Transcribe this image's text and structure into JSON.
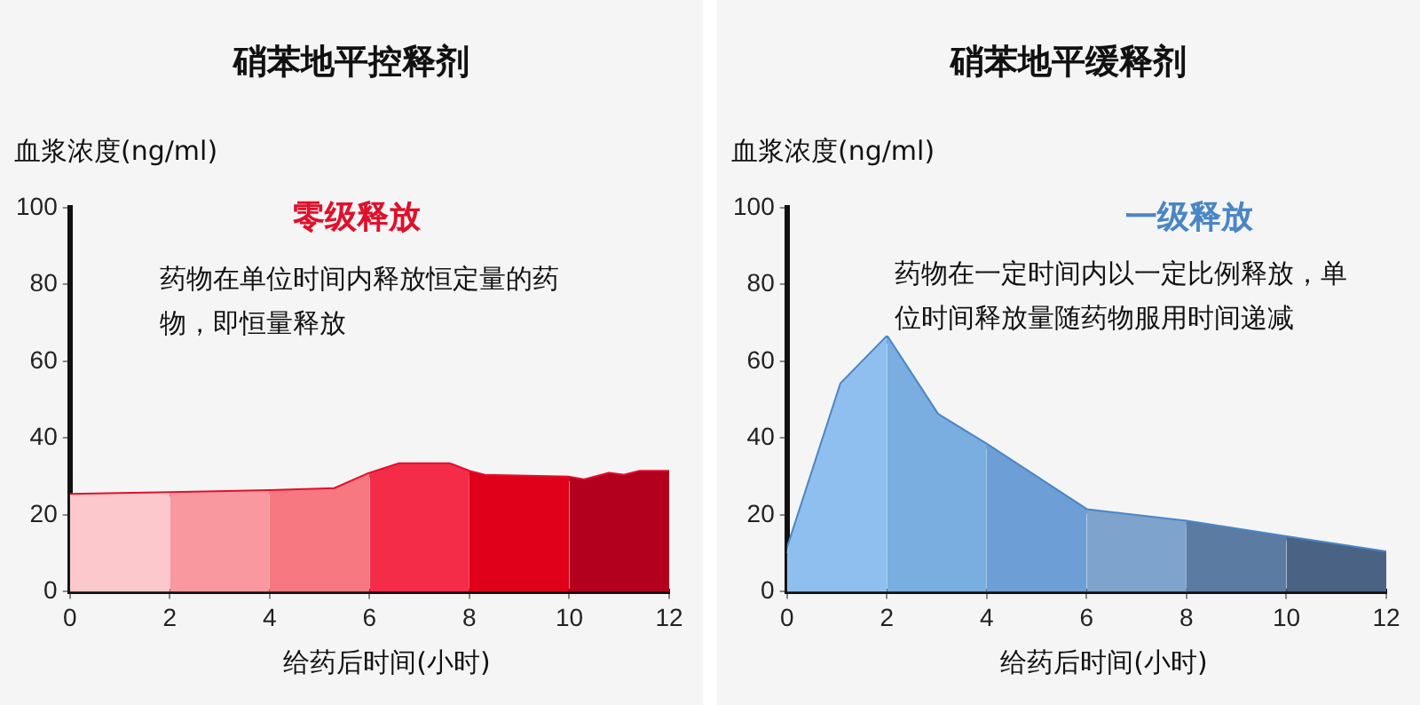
{
  "chart_data": [
    {
      "type": "area",
      "title": "硝苯地平控释剂",
      "ylabel": "血浆浓度(ng/ml)",
      "xlabel": "给药后时间(小时)",
      "annotations": [
        "零级释放",
        "药物在单位时间内释放恒定量的药物，即恒量释放"
      ],
      "xlim": [
        0,
        12
      ],
      "xticks": [
        0,
        2,
        4,
        6,
        8,
        10,
        12
      ],
      "ylim": [
        0,
        100
      ],
      "yticks": [
        0,
        20,
        40,
        60,
        80,
        100
      ],
      "grid": false,
      "legend": false,
      "series": [
        {
          "color": "#fcc8cb",
          "x": [
            0,
            2
          ],
          "values": [
            25,
            25.5
          ]
        },
        {
          "color": "#f9989f",
          "x": [
            2,
            4
          ],
          "values": [
            25.5,
            26
          ]
        },
        {
          "color": "#f77880",
          "x": [
            4,
            5.3,
            6
          ],
          "values": [
            26,
            26.5,
            30.5
          ]
        },
        {
          "color": "#f52c48",
          "x": [
            6,
            6.6,
            7.6,
            8
          ],
          "values": [
            30.5,
            33,
            33,
            31
          ]
        },
        {
          "color": "#e0001a",
          "x": [
            8,
            8.3,
            10
          ],
          "values": [
            31,
            30,
            29.5
          ]
        },
        {
          "color": "#b2001e",
          "x": [
            10,
            10.3,
            10.8,
            11.1,
            11.4,
            12
          ],
          "values": [
            29.5,
            28.8,
            30.5,
            30,
            31,
            31
          ]
        },
        {
          "type": "line",
          "color": "#e0102c",
          "x": [
            0,
            2,
            4,
            5.3,
            6,
            6.6,
            7.6,
            8,
            8.3,
            10,
            10.3,
            10.8,
            11.1,
            11.4,
            12
          ],
          "values": [
            25,
            25.5,
            26,
            26.5,
            30.5,
            33,
            33,
            31,
            30,
            29.5,
            28.8,
            30.5,
            30,
            31,
            31
          ]
        }
      ]
    },
    {
      "type": "area",
      "title": "硝苯地平缓释剂",
      "ylabel": "血浆浓度(ng/ml)",
      "xlabel": "给药后时间(小时)",
      "annotations": [
        "一级释放",
        "药物在一定时间内以一定比例释放，单位时间释放量随药物服用时间递减"
      ],
      "xlim": [
        0,
        12
      ],
      "xticks": [
        0,
        2,
        4,
        6,
        8,
        10,
        12
      ],
      "ylim": [
        0,
        100
      ],
      "yticks": [
        0,
        20,
        40,
        60,
        80,
        100
      ],
      "grid": false,
      "legend": false,
      "series": [
        {
          "color": "#8fbfef",
          "x": [
            0,
            1.1,
            2
          ],
          "values": [
            10,
            54,
            66
          ]
        },
        {
          "color": "#7aaee0",
          "x": [
            2,
            3,
            4
          ],
          "values": [
            66,
            46,
            38
          ]
        },
        {
          "color": "#6d9fd6",
          "x": [
            4,
            6
          ],
          "values": [
            38,
            21
          ]
        },
        {
          "color": "#7ea3cc",
          "x": [
            6,
            8
          ],
          "values": [
            21,
            18
          ]
        },
        {
          "color": "#5b7ba3",
          "x": [
            8,
            10
          ],
          "values": [
            18,
            14
          ]
        },
        {
          "color": "#4a6385",
          "x": [
            10,
            12
          ],
          "values": [
            14,
            10
          ]
        },
        {
          "type": "line",
          "color": "#4a86c5",
          "x": [
            0,
            1.1,
            2,
            3,
            4,
            6,
            8,
            10,
            12
          ],
          "values": [
            10,
            54,
            66,
            46,
            38,
            21,
            18,
            14,
            10
          ]
        }
      ]
    }
  ]
}
